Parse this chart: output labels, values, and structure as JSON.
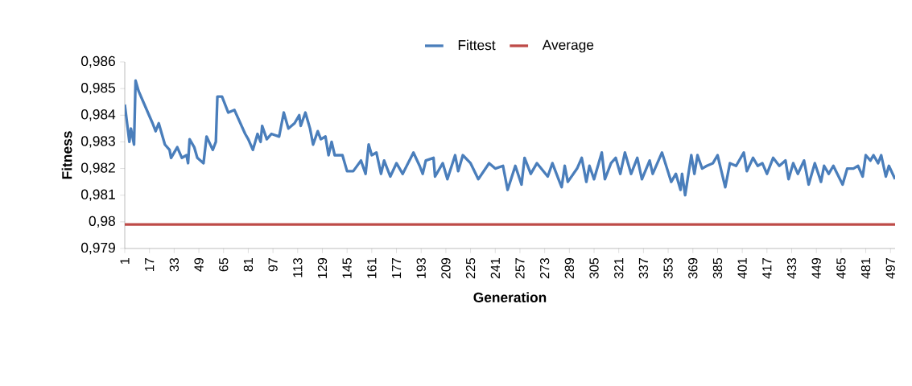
{
  "chart_data": {
    "type": "line",
    "xlabel": "Generation",
    "ylabel": "Fitness",
    "x": [
      1,
      4,
      5,
      7,
      8,
      10,
      13,
      19,
      21,
      23,
      27,
      30,
      31,
      35,
      38,
      41,
      42,
      43,
      46,
      48,
      52,
      54,
      58,
      60,
      61,
      64,
      68,
      72,
      79,
      81,
      84,
      87,
      89,
      90,
      93,
      96,
      101,
      104,
      107,
      111,
      114,
      115,
      118,
      121,
      123,
      126,
      128,
      131,
      133,
      135,
      137,
      142,
      145,
      149,
      154,
      157,
      159,
      161,
      164,
      167,
      169,
      173,
      177,
      181,
      188,
      192,
      194,
      196,
      201,
      202,
      207,
      210,
      215,
      217,
      220,
      225,
      230,
      237,
      241,
      246,
      249,
      254,
      258,
      260,
      264,
      268,
      275,
      278,
      282,
      284,
      286,
      288,
      294,
      297,
      300,
      302,
      305,
      310,
      312,
      316,
      319,
      322,
      325,
      329,
      333,
      336,
      341,
      343,
      349,
      355,
      358,
      361,
      362,
      364,
      368,
      370,
      372,
      375,
      378,
      382,
      385,
      390,
      393,
      397,
      402,
      404,
      408,
      411,
      414,
      417,
      421,
      425,
      429,
      431,
      434,
      437,
      441,
      444,
      448,
      452,
      454,
      457,
      460,
      466,
      469,
      473,
      476,
      479,
      481,
      484,
      486,
      489,
      491,
      494,
      496,
      500
    ],
    "series": [
      {
        "name": "Fittest",
        "color": "#4a7ebb",
        "values": [
          0.9844,
          0.983,
          0.9835,
          0.9829,
          0.9853,
          0.9849,
          0.9845,
          0.9837,
          0.9834,
          0.9837,
          0.9829,
          0.9827,
          0.9824,
          0.9828,
          0.9824,
          0.9825,
          0.9822,
          0.9831,
          0.9828,
          0.9824,
          0.9822,
          0.9832,
          0.9827,
          0.983,
          0.9847,
          0.9847,
          0.9841,
          0.9842,
          0.9833,
          0.9831,
          0.9827,
          0.9833,
          0.983,
          0.9836,
          0.9831,
          0.9833,
          0.9832,
          0.9841,
          0.9835,
          0.9837,
          0.984,
          0.9836,
          0.9841,
          0.9835,
          0.9829,
          0.9834,
          0.9831,
          0.9832,
          0.9825,
          0.983,
          0.9825,
          0.9825,
          0.9819,
          0.9819,
          0.9823,
          0.9818,
          0.9829,
          0.9825,
          0.9826,
          0.9818,
          0.9823,
          0.9817,
          0.9822,
          0.9818,
          0.9826,
          0.9821,
          0.9818,
          0.9823,
          0.9824,
          0.9817,
          0.9822,
          0.9816,
          0.9825,
          0.9819,
          0.9825,
          0.9822,
          0.9816,
          0.9822,
          0.982,
          0.9821,
          0.9812,
          0.9821,
          0.9814,
          0.9824,
          0.9818,
          0.9822,
          0.9817,
          0.9822,
          0.9816,
          0.9813,
          0.9821,
          0.9815,
          0.982,
          0.9824,
          0.9815,
          0.9821,
          0.9816,
          0.9826,
          0.9816,
          0.9822,
          0.9824,
          0.9818,
          0.9826,
          0.9818,
          0.9824,
          0.9816,
          0.9823,
          0.9818,
          0.9826,
          0.9815,
          0.9818,
          0.9812,
          0.9818,
          0.981,
          0.9825,
          0.9818,
          0.9825,
          0.982,
          0.9821,
          0.9822,
          0.9825,
          0.9813,
          0.9822,
          0.9821,
          0.9826,
          0.9819,
          0.9824,
          0.9821,
          0.9822,
          0.9818,
          0.9824,
          0.9821,
          0.9823,
          0.9816,
          0.9822,
          0.9818,
          0.9823,
          0.9814,
          0.9822,
          0.9815,
          0.9821,
          0.9818,
          0.9821,
          0.9814,
          0.982,
          0.982,
          0.9821,
          0.9817,
          0.9825,
          0.9823,
          0.9825,
          0.9822,
          0.9825,
          0.9817,
          0.9821,
          0.9816
        ]
      },
      {
        "name": "Average",
        "color": "#be4b48",
        "x": [
          1,
          500
        ],
        "values": [
          0.9799,
          0.9799
        ]
      }
    ],
    "xlim": [
      1,
      500
    ],
    "xticks": [
      1,
      17,
      33,
      49,
      65,
      81,
      97,
      113,
      129,
      145,
      161,
      177,
      193,
      209,
      225,
      241,
      257,
      273,
      289,
      305,
      321,
      337,
      353,
      369,
      385,
      401,
      417,
      433,
      449,
      465,
      481,
      497
    ],
    "ylim": [
      0.979,
      0.986
    ],
    "yticks": [
      {
        "value": 0.979,
        "label": "0,979"
      },
      {
        "value": 0.98,
        "label": "0,98"
      },
      {
        "value": 0.981,
        "label": "0,981"
      },
      {
        "value": 0.982,
        "label": "0,982"
      },
      {
        "value": 0.983,
        "label": "0,983"
      },
      {
        "value": 0.984,
        "label": "0,984"
      },
      {
        "value": 0.985,
        "label": "0,985"
      },
      {
        "value": 0.986,
        "label": "0,986"
      }
    ],
    "grid": false,
    "legend": "top",
    "marker": "none",
    "line_style": "solid"
  }
}
